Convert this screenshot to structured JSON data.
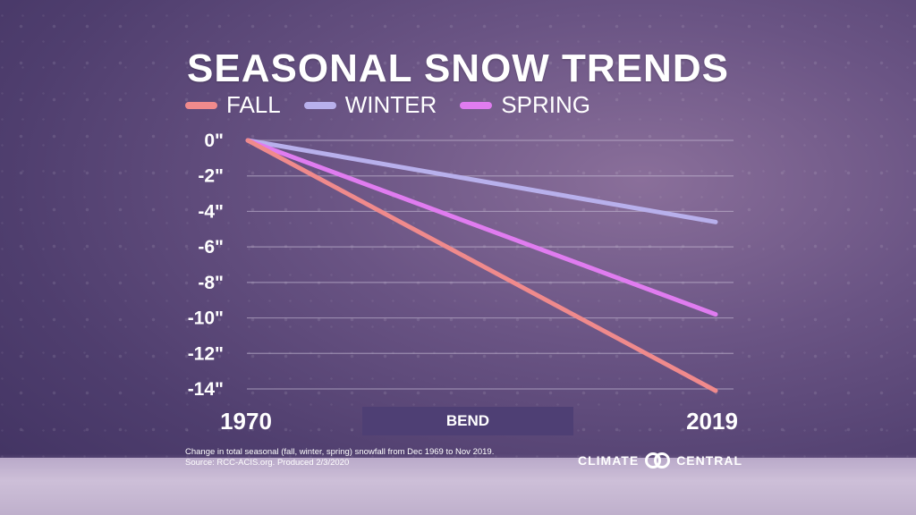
{
  "title": "SEASONAL SNOW TRENDS",
  "location": "BEND",
  "footnote": {
    "line1": "Change in total seasonal (fall, winter, spring) snowfall from Dec 1969 to Nov 2019.",
    "line2": "Source: RCC-ACIS.org. Produced 2/3/2020"
  },
  "brand": {
    "left": "CLIMATE",
    "right": "CENTRAL",
    "logo_icon": "climate-central-logo-icon"
  },
  "chart_data": {
    "type": "line",
    "title": "SEASONAL SNOW TRENDS",
    "x": [
      1970,
      2019
    ],
    "x_tick_labels": [
      "1970",
      "2019"
    ],
    "ylim": [
      -14,
      0
    ],
    "y_ticks": [
      0,
      -2,
      -4,
      -6,
      -8,
      -10,
      -12,
      -14
    ],
    "y_tick_labels": [
      "0\"",
      "-2\"",
      "-4\"",
      "-6\"",
      "-8\"",
      "-10\"",
      "-12\"",
      "-14\""
    ],
    "grid": true,
    "legend_position": "top-left",
    "series": [
      {
        "name": "FALL",
        "color": "#f08a8c",
        "values": [
          0,
          -14.1
        ]
      },
      {
        "name": "WINTER",
        "color": "#b8b0ec",
        "values": [
          0,
          -4.6
        ]
      },
      {
        "name": "SPRING",
        "color": "#e07cf0",
        "values": [
          0,
          -9.8
        ]
      }
    ]
  }
}
